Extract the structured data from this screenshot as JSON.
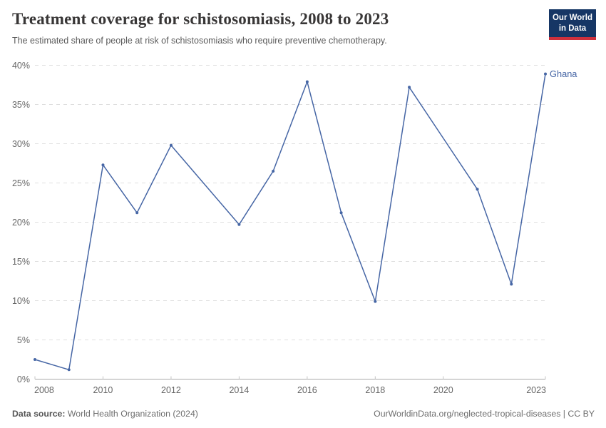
{
  "header": {
    "title": "Treatment coverage for schistosomiasis, 2008 to 2023",
    "subtitle": "The estimated share of people at risk of schistosomiasis who require preventive chemotherapy.",
    "logo": {
      "line1": "Our World",
      "line2": "in Data"
    }
  },
  "chart_data": {
    "type": "line",
    "title": "Treatment coverage for schistosomiasis, 2008 to 2023",
    "xlabel": "",
    "ylabel": "",
    "xlim": [
      2008,
      2023
    ],
    "ylim": [
      0,
      40
    ],
    "x_ticks": [
      2008,
      2010,
      2012,
      2014,
      2016,
      2018,
      2020,
      2023
    ],
    "y_ticks": [
      0,
      5,
      10,
      15,
      20,
      25,
      30,
      35,
      40
    ],
    "y_tick_suffix": "%",
    "grid": "horizontal-dashed",
    "legend_position": "end-of-line-label",
    "series": [
      {
        "name": "Ghana",
        "color": "#4666a5",
        "points": [
          {
            "x": 2008,
            "y": 2.5
          },
          {
            "x": 2009,
            "y": 1.2
          },
          {
            "x": 2010,
            "y": 27.3
          },
          {
            "x": 2011,
            "y": 21.2
          },
          {
            "x": 2012,
            "y": 29.8
          },
          {
            "x": 2014,
            "y": 19.7
          },
          {
            "x": 2015,
            "y": 26.5
          },
          {
            "x": 2016,
            "y": 37.9
          },
          {
            "x": 2017,
            "y": 21.2
          },
          {
            "x": 2018,
            "y": 9.9
          },
          {
            "x": 2019,
            "y": 37.2
          },
          {
            "x": 2021,
            "y": 24.2
          },
          {
            "x": 2022,
            "y": 12.1
          },
          {
            "x": 2023,
            "y": 38.9
          }
        ],
        "gap_years": [
          2013,
          2020
        ]
      }
    ]
  },
  "footer": {
    "source_label": "Data source:",
    "source_value": "World Health Organization (2024)",
    "link": "OurWorldinData.org/neglected-tropical-diseases | CC BY"
  },
  "colors": {
    "series_blue": "#4666a5",
    "title_text": "#383636",
    "subtitle_text": "#5b5b5b",
    "tick_text": "#666666",
    "gridline": "#dedede",
    "axis_line": "#a9a9a9",
    "tick_mark": "#c4c4c4",
    "logo_bg": "#163665",
    "logo_red": "#cf303c",
    "background": "#ffffff"
  }
}
